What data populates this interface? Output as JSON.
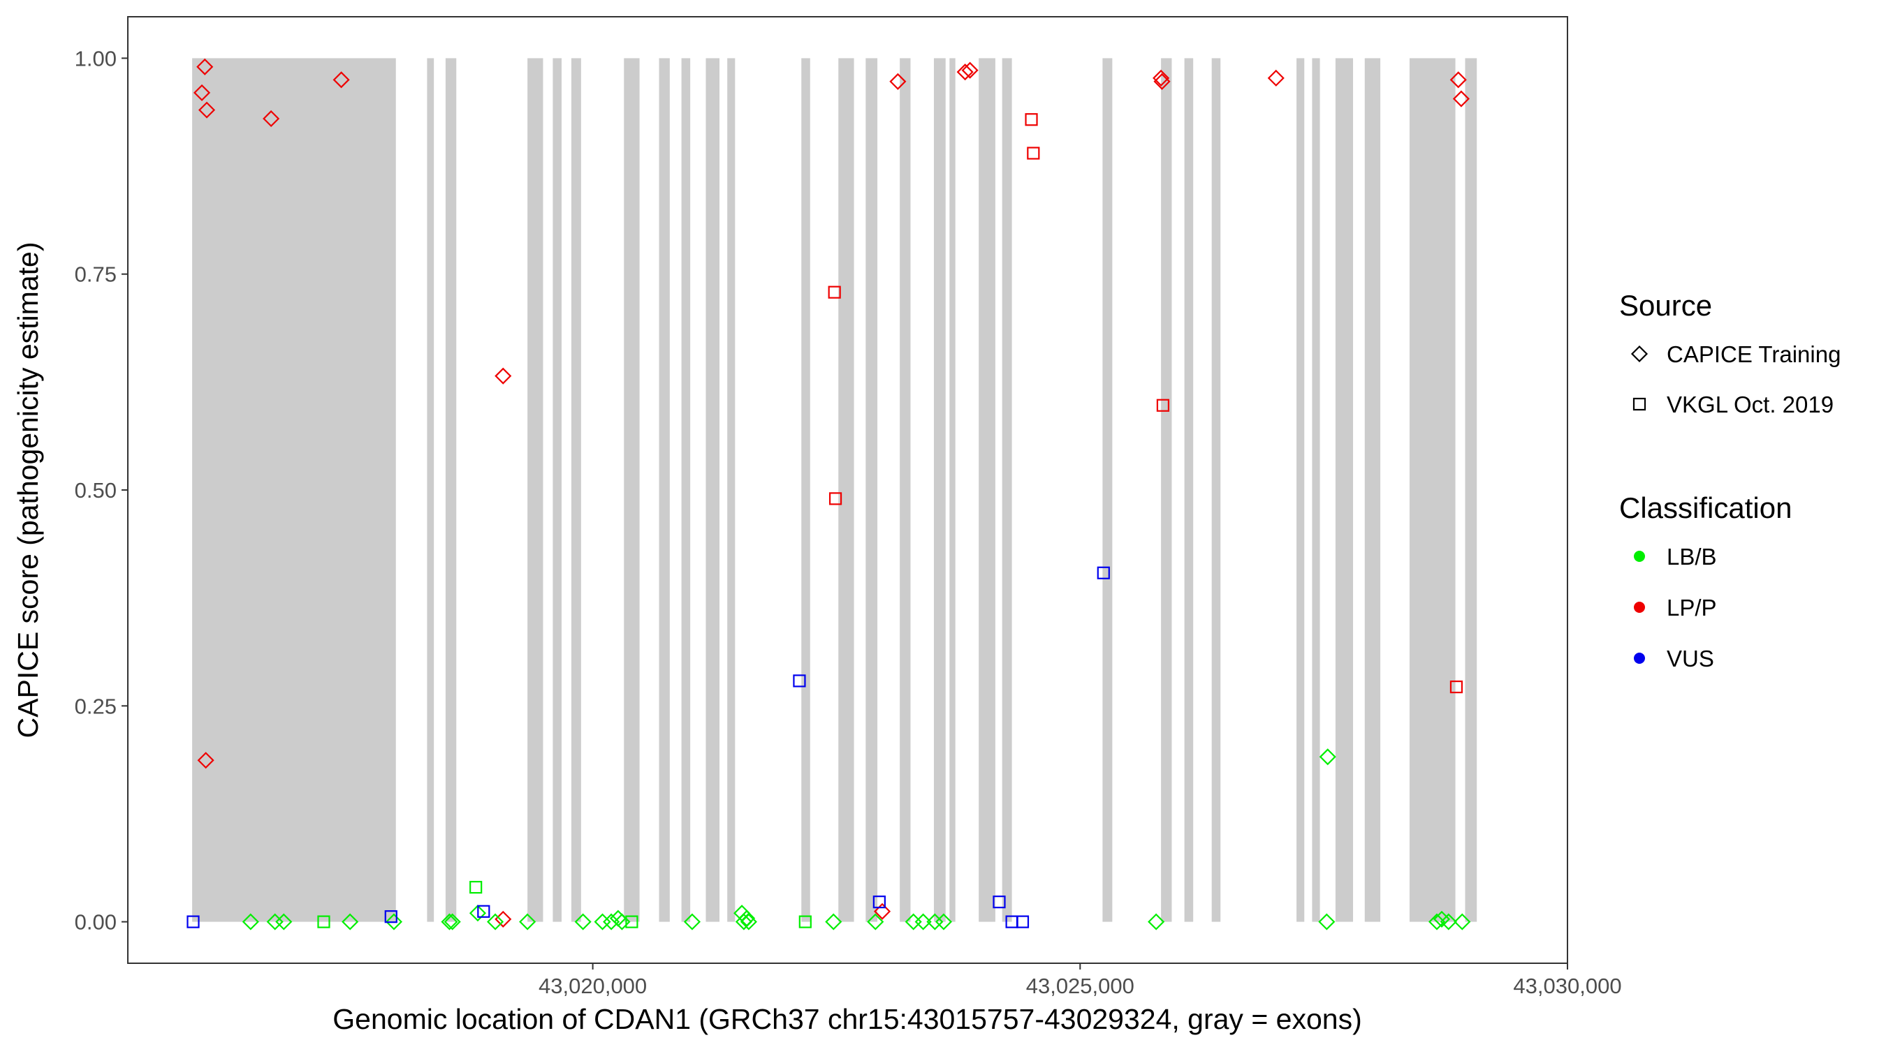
{
  "chart_data": {
    "type": "scatter",
    "title": "",
    "xlabel": "Genomic location of CDAN1 (GRCh37 chr15:43015757-43029324, gray = exons)",
    "ylabel": "CAPICE score (pathogenicity estimate)",
    "xlim": [
      43015230,
      43030000
    ],
    "ylim": [
      -0.048,
      1.048
    ],
    "grid": false,
    "x_ticks": [
      43020000,
      43025000,
      43030000
    ],
    "x_tick_labels": [
      "43,020,000",
      "43,025,000",
      "43,030,000"
    ],
    "y_ticks": [
      0,
      0.25,
      0.5,
      0.75,
      1.0
    ],
    "y_tick_labels": [
      "0.00",
      "0.25",
      "0.50",
      "0.75",
      "1.00"
    ],
    "exons": [
      [
        43015890,
        43017980
      ],
      [
        43018300,
        43018370
      ],
      [
        43018490,
        43018600
      ],
      [
        43019330,
        43019490
      ],
      [
        43019590,
        43019680
      ],
      [
        43019780,
        43019880
      ],
      [
        43020320,
        43020480
      ],
      [
        43020680,
        43020790
      ],
      [
        43020910,
        43021000
      ],
      [
        43021160,
        43021300
      ],
      [
        43021380,
        43021460
      ],
      [
        43022140,
        43022230
      ],
      [
        43022520,
        43022680
      ],
      [
        43022800,
        43022920
      ],
      [
        43023150,
        43023260
      ],
      [
        43023500,
        43023620
      ],
      [
        43023660,
        43023720
      ],
      [
        43023960,
        43024130
      ],
      [
        43024200,
        43024300
      ],
      [
        43025230,
        43025330
      ],
      [
        43025830,
        43025940
      ],
      [
        43026070,
        43026160
      ],
      [
        43026350,
        43026440
      ],
      [
        43027220,
        43027300
      ],
      [
        43027380,
        43027460
      ],
      [
        43027620,
        43027800
      ],
      [
        43027920,
        43028080
      ],
      [
        43028380,
        43028850
      ],
      [
        43028950,
        43029070
      ]
    ],
    "legend": {
      "placement": "right",
      "source": {
        "title": "Source",
        "items": [
          {
            "label": "CAPICE Training",
            "shape": "diamond"
          },
          {
            "label": "VKGL Oct. 2019",
            "shape": "square"
          }
        ]
      },
      "classification": {
        "title": "Classification",
        "items": [
          {
            "label": "LB/B",
            "key": "LBB",
            "color": "#00ee00"
          },
          {
            "label": "LP/P",
            "key": "LPP",
            "color": "#ee0000"
          },
          {
            "label": "VUS",
            "key": "VUS",
            "color": "#0000ee"
          }
        ]
      }
    },
    "series": [
      {
        "source": "CAPICE Training",
        "classification": "LP/P",
        "points": [
          [
            43016020,
            0.99
          ],
          [
            43015990,
            0.96
          ],
          [
            43016040,
            0.94
          ],
          [
            43016700,
            0.93
          ],
          [
            43017420,
            0.975
          ],
          [
            43016030,
            0.187
          ],
          [
            43019080,
            0.632
          ],
          [
            43019080,
            0.003
          ],
          [
            43022970,
            0.012
          ],
          [
            43023130,
            0.973
          ],
          [
            43023820,
            0.984
          ],
          [
            43023870,
            0.986
          ],
          [
            43025830,
            0.977
          ],
          [
            43025840,
            0.973
          ],
          [
            43027010,
            0.977
          ],
          [
            43028880,
            0.975
          ],
          [
            43028910,
            0.953
          ]
        ]
      },
      {
        "source": "CAPICE Training",
        "classification": "LB/B",
        "points": [
          [
            43016490,
            0
          ],
          [
            43016740,
            0
          ],
          [
            43016830,
            0
          ],
          [
            43017510,
            0
          ],
          [
            43017960,
            0
          ],
          [
            43018530,
            0
          ],
          [
            43018560,
            0
          ],
          [
            43018820,
            0.01
          ],
          [
            43019000,
            0
          ],
          [
            43019330,
            0
          ],
          [
            43019900,
            0
          ],
          [
            43020100,
            0
          ],
          [
            43020190,
            0
          ],
          [
            43020260,
            0.004
          ],
          [
            43020300,
            0
          ],
          [
            43021020,
            0
          ],
          [
            43021530,
            0.01
          ],
          [
            43021550,
            0
          ],
          [
            43021580,
            0.004
          ],
          [
            43021600,
            0
          ],
          [
            43022470,
            0
          ],
          [
            43022900,
            0
          ],
          [
            43023290,
            0
          ],
          [
            43023390,
            0
          ],
          [
            43023510,
            0
          ],
          [
            43023600,
            0
          ],
          [
            43025780,
            0
          ],
          [
            43027540,
            0.191
          ],
          [
            43027530,
            0
          ],
          [
            43028660,
            0
          ],
          [
            43028710,
            0.003
          ],
          [
            43028780,
            0
          ],
          [
            43028920,
            0
          ]
        ]
      },
      {
        "source": "VKGL Oct. 2019",
        "classification": "LP/P",
        "points": [
          [
            43022480,
            0.729
          ],
          [
            43022490,
            0.49
          ],
          [
            43024500,
            0.929
          ],
          [
            43024520,
            0.89
          ],
          [
            43025850,
            0.598
          ],
          [
            43028860,
            0.272
          ]
        ]
      },
      {
        "source": "VKGL Oct. 2019",
        "classification": "LB/B",
        "points": [
          [
            43017240,
            0
          ],
          [
            43018800,
            0.04
          ],
          [
            43020400,
            0
          ],
          [
            43022180,
            0
          ]
        ]
      },
      {
        "source": "VKGL Oct. 2019",
        "classification": "VUS",
        "points": [
          [
            43015900,
            0
          ],
          [
            43017930,
            0.006
          ],
          [
            43018880,
            0.012
          ],
          [
            43022120,
            0.279
          ],
          [
            43022940,
            0.023
          ],
          [
            43024170,
            0.023
          ],
          [
            43024300,
            0
          ],
          [
            43024410,
            0
          ],
          [
            43025240,
            0.404
          ]
        ]
      }
    ]
  }
}
